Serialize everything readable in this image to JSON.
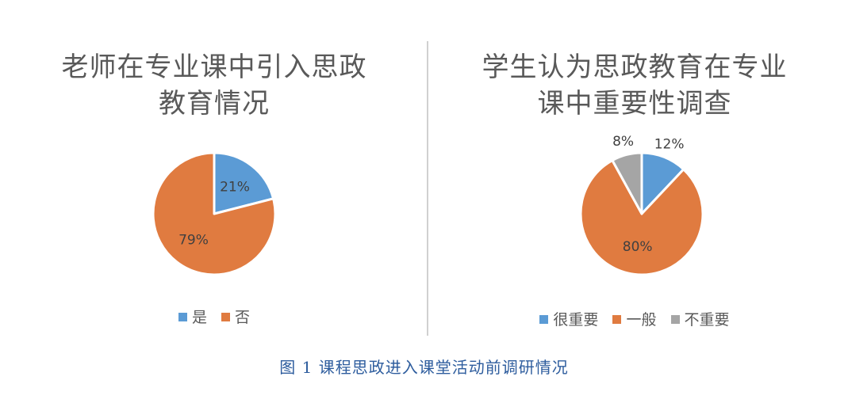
{
  "colors": {
    "blue": "#5b9bd5",
    "orange": "#e07b40",
    "gray": "#a5a5a5",
    "text": "#595959",
    "caption": "#2e5d9e"
  },
  "chart_data": [
    {
      "type": "pie",
      "title_lines": [
        "老师在专业课中引入思政",
        "教育情况"
      ],
      "labels": [
        "是",
        "否"
      ],
      "values": [
        21,
        79
      ],
      "data_labels": [
        "21%",
        "79%"
      ],
      "colors": [
        "#5b9bd5",
        "#e07b40"
      ],
      "legend_position": "bottom"
    },
    {
      "type": "pie",
      "title_lines": [
        "学生认为思政教育在专业",
        "课中重要性调查"
      ],
      "labels": [
        "很重要",
        "一般",
        "不重要"
      ],
      "values": [
        12,
        80,
        8
      ],
      "data_labels": [
        "12%",
        "80%",
        "8%"
      ],
      "colors": [
        "#5b9bd5",
        "#e07b40",
        "#a5a5a5"
      ],
      "legend_position": "bottom"
    }
  ],
  "caption": "图 1 课程思政进入课堂活动前调研情况"
}
